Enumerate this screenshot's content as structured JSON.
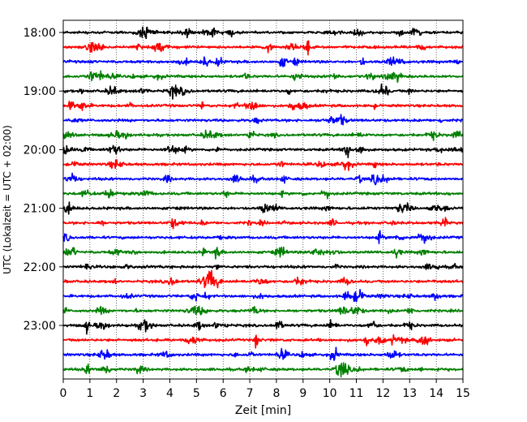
{
  "chart_data": {
    "type": "line",
    "title": "",
    "xlabel": "Zeit  [min]",
    "ylabel": "UTC (Lokalzeit = UTC + 02:00)",
    "xlim": [
      0,
      15
    ],
    "x_ticks": [
      0,
      1,
      2,
      3,
      4,
      5,
      6,
      7,
      8,
      9,
      10,
      11,
      12,
      13,
      14,
      15
    ],
    "x_tick_labels": [
      "0",
      "1",
      "2",
      "3",
      "4",
      "5",
      "6",
      "7",
      "8",
      "9",
      "10",
      "11",
      "12",
      "13",
      "14",
      "15"
    ],
    "y_tick_labels": [
      "18:00",
      "19:00",
      "20:00",
      "21:00",
      "22:00",
      "23:00"
    ],
    "grid": "vertical dotted lines at each minute",
    "legend": "none",
    "trace_minutes": 15,
    "trace_start_times": [
      "18:00",
      "18:15",
      "18:30",
      "18:45",
      "19:00",
      "19:15",
      "19:30",
      "19:45",
      "20:00",
      "20:15",
      "20:30",
      "20:45",
      "21:00",
      "21:15",
      "21:30",
      "21:45",
      "22:00",
      "22:15",
      "22:30",
      "22:45",
      "23:00",
      "23:15",
      "23:30",
      "23:45"
    ],
    "trace_colors": [
      "#000000",
      "#ff0000",
      "#0000ff",
      "#008000"
    ]
  }
}
